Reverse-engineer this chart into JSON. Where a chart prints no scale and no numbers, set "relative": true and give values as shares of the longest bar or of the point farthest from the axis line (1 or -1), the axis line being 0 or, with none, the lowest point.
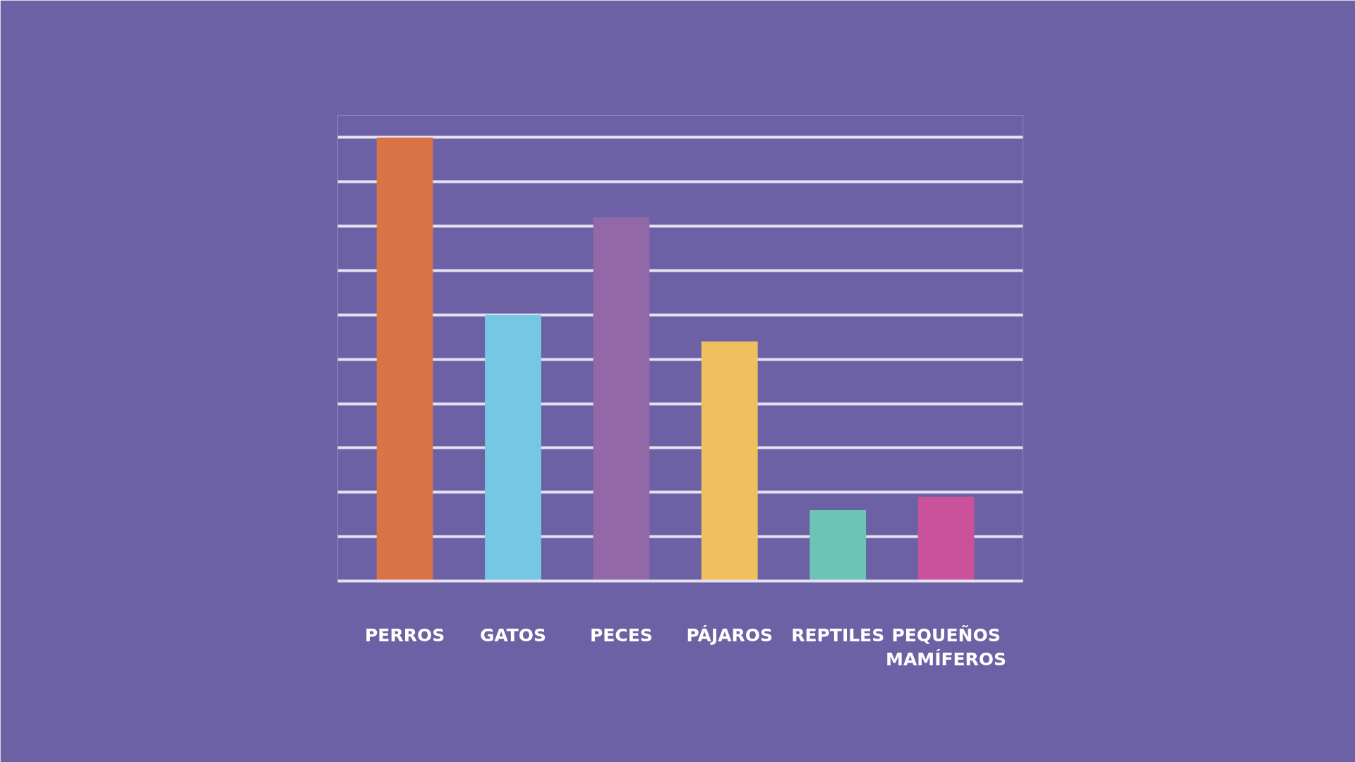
{
  "chart_data": {
    "type": "bar",
    "categories": [
      "PERROS",
      "GATOS",
      "PECES",
      "PÁJAROS",
      "REPTILES",
      "PEQUEÑOS MAMÍFEROS"
    ],
    "values": [
      1,
      0.6,
      0.82,
      0.54,
      0.16,
      0.19
    ],
    "colors": [
      "#da7346",
      "#75c8e4",
      "#9368a9",
      "#f0c05e",
      "#6cc4b4",
      "#c9529b"
    ],
    "relative": true,
    "grid": "y"
  }
}
